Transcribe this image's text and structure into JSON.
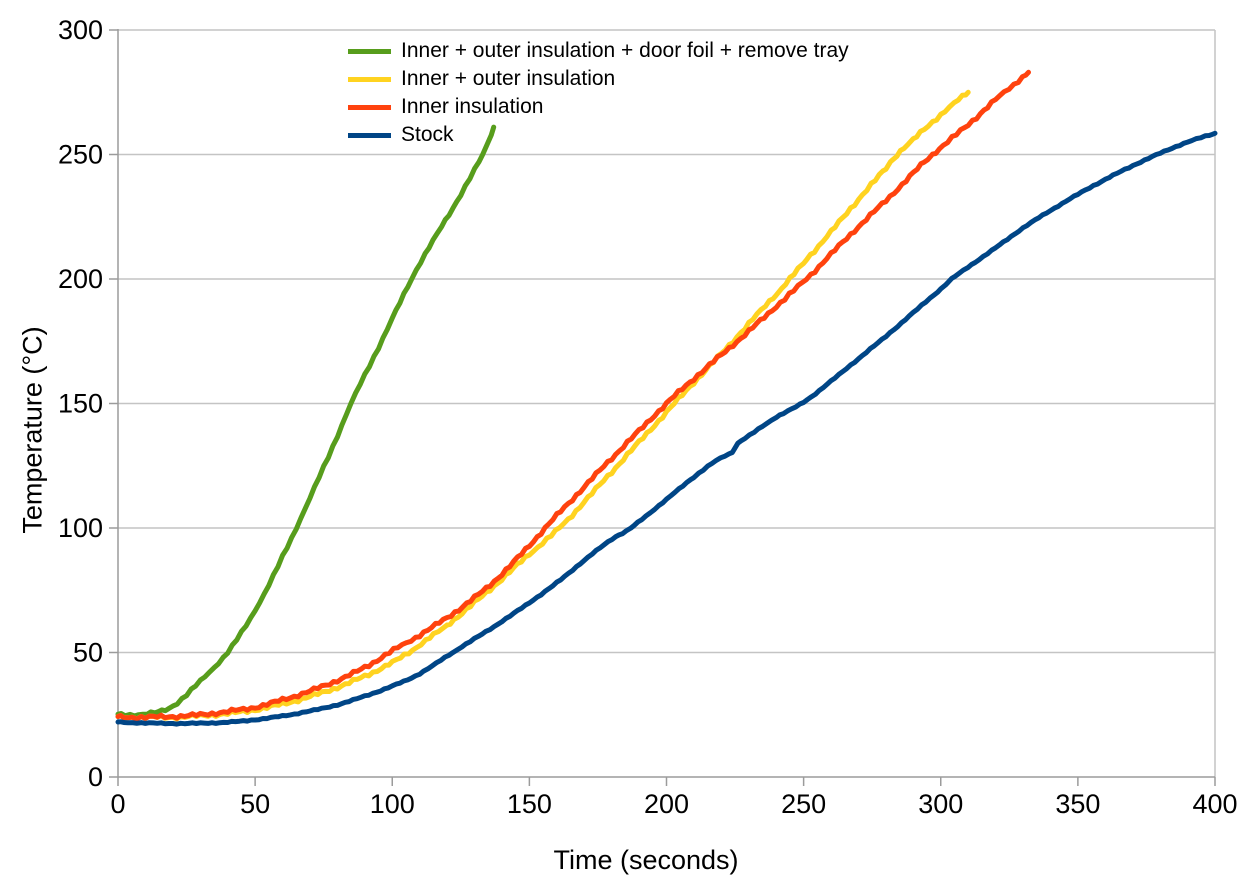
{
  "chart_data": {
    "type": "line",
    "title": "",
    "xlabel": "Time (seconds)",
    "ylabel": "Temperature (°C)",
    "xlim": [
      0,
      400
    ],
    "ylim": [
      0,
      300
    ],
    "xticks": [
      0,
      50,
      100,
      150,
      200,
      250,
      300,
      350,
      400
    ],
    "yticks": [
      0,
      50,
      100,
      150,
      200,
      250,
      300
    ],
    "grid": "horizontal",
    "legend_position": "top-left-inside",
    "grid_color": "#c4c4c4",
    "axis_color": "#9b9b9b",
    "text_color": "#000000",
    "series": [
      {
        "name": "Inner + outer insulation + door foil + remove tray",
        "color": "#579d1c",
        "points": [
          [
            0,
            25
          ],
          [
            6,
            25
          ],
          [
            12,
            25.6
          ],
          [
            16,
            26.5
          ],
          [
            20,
            28.5
          ],
          [
            25,
            33
          ],
          [
            30,
            38.5
          ],
          [
            35,
            44
          ],
          [
            40,
            50
          ],
          [
            45,
            58
          ],
          [
            50,
            67
          ],
          [
            55,
            77
          ],
          [
            60,
            88.5
          ],
          [
            65,
            100
          ],
          [
            70,
            112
          ],
          [
            75,
            124.5
          ],
          [
            80,
            137
          ],
          [
            85,
            150
          ],
          [
            90,
            161.5
          ],
          [
            95,
            172.5
          ],
          [
            100,
            184
          ],
          [
            107,
            200
          ],
          [
            112,
            210
          ],
          [
            118,
            221
          ],
          [
            125,
            234
          ],
          [
            133,
            250
          ],
          [
            137,
            261
          ]
        ]
      },
      {
        "name": "Inner + outer insulation",
        "color": "#ffd320",
        "points": [
          [
            0,
            24
          ],
          [
            10,
            24
          ],
          [
            20,
            24
          ],
          [
            30,
            24.6
          ],
          [
            40,
            25.5
          ],
          [
            50,
            27
          ],
          [
            60,
            29.3
          ],
          [
            70,
            32.3
          ],
          [
            80,
            36
          ],
          [
            90,
            40.5
          ],
          [
            100,
            46
          ],
          [
            106,
            50
          ],
          [
            115,
            57
          ],
          [
            120,
            61
          ],
          [
            130,
            70
          ],
          [
            140,
            79.5
          ],
          [
            150,
            89.5
          ],
          [
            161,
            100
          ],
          [
            170,
            110.5
          ],
          [
            180,
            122.5
          ],
          [
            190,
            134.5
          ],
          [
            200,
            146.5
          ],
          [
            210,
            158.5
          ],
          [
            220,
            170
          ],
          [
            230,
            182
          ],
          [
            240,
            194
          ],
          [
            245,
            200
          ],
          [
            250,
            206.5
          ],
          [
            260,
            219
          ],
          [
            270,
            232
          ],
          [
            280,
            244.5
          ],
          [
            284,
            250
          ],
          [
            290,
            256
          ],
          [
            300,
            266
          ],
          [
            310,
            275
          ]
        ]
      },
      {
        "name": "Inner insulation",
        "color": "#ff420e",
        "points": [
          [
            0,
            24
          ],
          [
            10,
            24
          ],
          [
            20,
            24.3
          ],
          [
            30,
            25
          ],
          [
            40,
            26.3
          ],
          [
            50,
            28
          ],
          [
            60,
            31
          ],
          [
            70,
            34.5
          ],
          [
            80,
            38.8
          ],
          [
            90,
            44
          ],
          [
            99,
            50
          ],
          [
            110,
            57
          ],
          [
            120,
            64
          ],
          [
            130,
            72
          ],
          [
            140,
            81.5
          ],
          [
            150,
            93
          ],
          [
            160,
            105
          ],
          [
            170,
            116.5
          ],
          [
            180,
            128
          ],
          [
            190,
            139
          ],
          [
            200,
            150
          ],
          [
            210,
            160
          ],
          [
            220,
            169.5
          ],
          [
            230,
            179
          ],
          [
            240,
            189
          ],
          [
            251,
            200
          ],
          [
            260,
            210
          ],
          [
            270,
            221
          ],
          [
            280,
            231.5
          ],
          [
            290,
            242.5
          ],
          [
            297,
            250
          ],
          [
            310,
            262
          ],
          [
            320,
            272
          ],
          [
            332,
            283
          ]
        ]
      },
      {
        "name": "Stock",
        "color": "#004586",
        "points": [
          [
            0,
            22
          ],
          [
            10,
            21.7
          ],
          [
            20,
            21.5
          ],
          [
            30,
            21.6
          ],
          [
            40,
            22
          ],
          [
            50,
            23
          ],
          [
            60,
            24.5
          ],
          [
            70,
            26.5
          ],
          [
            80,
            29
          ],
          [
            90,
            32.5
          ],
          [
            100,
            36.5
          ],
          [
            110,
            41.5
          ],
          [
            122,
            50
          ],
          [
            130,
            55.5
          ],
          [
            140,
            62.5
          ],
          [
            150,
            70
          ],
          [
            160,
            78
          ],
          [
            170,
            87
          ],
          [
            180,
            95.5
          ],
          [
            187,
            100
          ],
          [
            200,
            111.5
          ],
          [
            210,
            120.5
          ],
          [
            218,
            127
          ],
          [
            224,
            130.5
          ],
          [
            226,
            134
          ],
          [
            232,
            138.5
          ],
          [
            240,
            144.5
          ],
          [
            250,
            150.5
          ],
          [
            260,
            159
          ],
          [
            270,
            168
          ],
          [
            280,
            177
          ],
          [
            290,
            186.5
          ],
          [
            300,
            196
          ],
          [
            304,
            200
          ],
          [
            310,
            204.8
          ],
          [
            320,
            212.5
          ],
          [
            330,
            220.5
          ],
          [
            340,
            227.5
          ],
          [
            350,
            234
          ],
          [
            360,
            240
          ],
          [
            370,
            245.5
          ],
          [
            380,
            250.5
          ],
          [
            390,
            255
          ],
          [
            400,
            258.5
          ]
        ]
      }
    ]
  }
}
